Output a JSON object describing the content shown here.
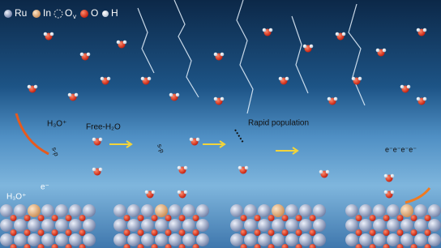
{
  "legend": [
    {
      "label": "Ru"
    },
    {
      "label": "In"
    },
    {
      "label": "O",
      "sub": "v"
    },
    {
      "label": "O"
    },
    {
      "label": "H"
    }
  ],
  "labels": {
    "h3o_upper": "H₃O⁺",
    "free_water": "Free-H₂O",
    "rapid_population": "Rapid population",
    "h3o_lower": "H₃O⁺",
    "electron": "e⁻",
    "electrons": "e⁻e⁻e⁻e⁻",
    "sp_first": "s-p",
    "sp_second": "s-p"
  }
}
